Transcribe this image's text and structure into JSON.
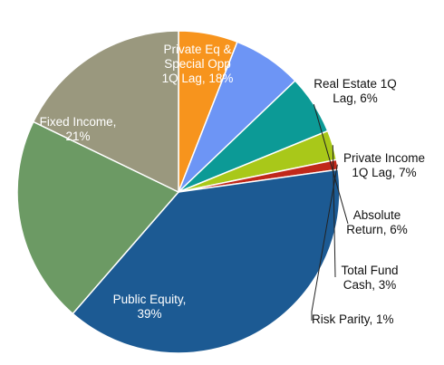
{
  "chart_data": {
    "type": "pie",
    "title": "",
    "start_angle_deg": 90,
    "direction": "clockwise",
    "slices": [
      {
        "label_lines": [
          "Real Estate 1Q",
          "Lag, 6%"
        ],
        "value": 6,
        "color": "#f7941d",
        "label_placement": "outside"
      },
      {
        "label_lines": [
          "Private Income",
          "1Q Lag, 7%"
        ],
        "value": 7,
        "color": "#6d95f5",
        "label_placement": "outside"
      },
      {
        "label_lines": [
          "Absolute",
          "Return, 6%"
        ],
        "value": 6,
        "color": "#0c9a96",
        "label_placement": "outside"
      },
      {
        "label_lines": [
          "Total Fund",
          "Cash, 3%"
        ],
        "value": 3,
        "color": "#a9c819",
        "label_placement": "outside"
      },
      {
        "label_lines": [
          "Risk Parity, 1%"
        ],
        "value": 1,
        "color": "#c0281a",
        "label_placement": "outside"
      },
      {
        "label_lines": [
          "Public Equity,",
          "39%"
        ],
        "value": 39,
        "color": "#1c5a93",
        "label_placement": "inside"
      },
      {
        "label_lines": [
          "Fixed Income,",
          "21%"
        ],
        "value": 21,
        "color": "#6c9a64",
        "label_placement": "inside"
      },
      {
        "label_lines": [
          "Private Eq &",
          "Special Opp",
          "1Q Lag, 18%"
        ],
        "value": 18,
        "color": "#9a987e",
        "label_placement": "inside"
      }
    ]
  }
}
